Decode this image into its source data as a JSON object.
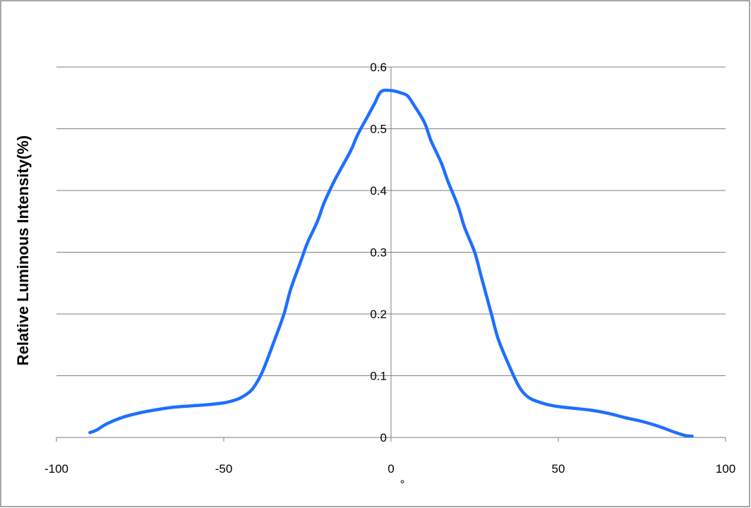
{
  "chart_data": {
    "type": "line",
    "title": "",
    "xlabel": "°",
    "ylabel": "Relative Luminous Intensity(%)",
    "xlim": [
      -100,
      100
    ],
    "ylim": [
      0,
      0.6
    ],
    "x_ticks": [
      -100,
      -50,
      0,
      50,
      100
    ],
    "y_ticks": [
      0,
      0.1,
      0.2,
      0.3,
      0.4,
      0.5,
      0.6
    ],
    "x_tick_labels": [
      "-100",
      "-50",
      "0",
      "50",
      "100"
    ],
    "y_tick_labels": [
      "0",
      "0.1",
      "0.2",
      "0.3",
      "0.4",
      "0.5",
      "0.6"
    ],
    "grid": true,
    "legend": "none",
    "series": [
      {
        "color": "#1f6fff",
        "x": [
          -90,
          -88,
          -85,
          -80,
          -75,
          -70,
          -65,
          -60,
          -55,
          -50,
          -47,
          -45,
          -42,
          -40,
          -38,
          -35,
          -32,
          -30,
          -27,
          -25,
          -22,
          -20,
          -17,
          -15,
          -12,
          -10,
          -7,
          -5,
          -3,
          0,
          3,
          5,
          7,
          10,
          12,
          15,
          17,
          20,
          22,
          25,
          27,
          30,
          32,
          35,
          38,
          40,
          42,
          45,
          47,
          50,
          55,
          60,
          65,
          70,
          75,
          80,
          85,
          88,
          90
        ],
        "y": [
          0.008,
          0.012,
          0.022,
          0.033,
          0.04,
          0.045,
          0.049,
          0.051,
          0.053,
          0.056,
          0.06,
          0.064,
          0.075,
          0.09,
          0.112,
          0.155,
          0.2,
          0.24,
          0.285,
          0.315,
          0.35,
          0.38,
          0.415,
          0.435,
          0.465,
          0.49,
          0.52,
          0.54,
          0.56,
          0.562,
          0.558,
          0.553,
          0.537,
          0.51,
          0.48,
          0.445,
          0.415,
          0.375,
          0.34,
          0.3,
          0.26,
          0.2,
          0.16,
          0.12,
          0.085,
          0.07,
          0.062,
          0.056,
          0.053,
          0.05,
          0.047,
          0.044,
          0.039,
          0.032,
          0.026,
          0.018,
          0.008,
          0.003,
          0.002
        ]
      }
    ]
  }
}
